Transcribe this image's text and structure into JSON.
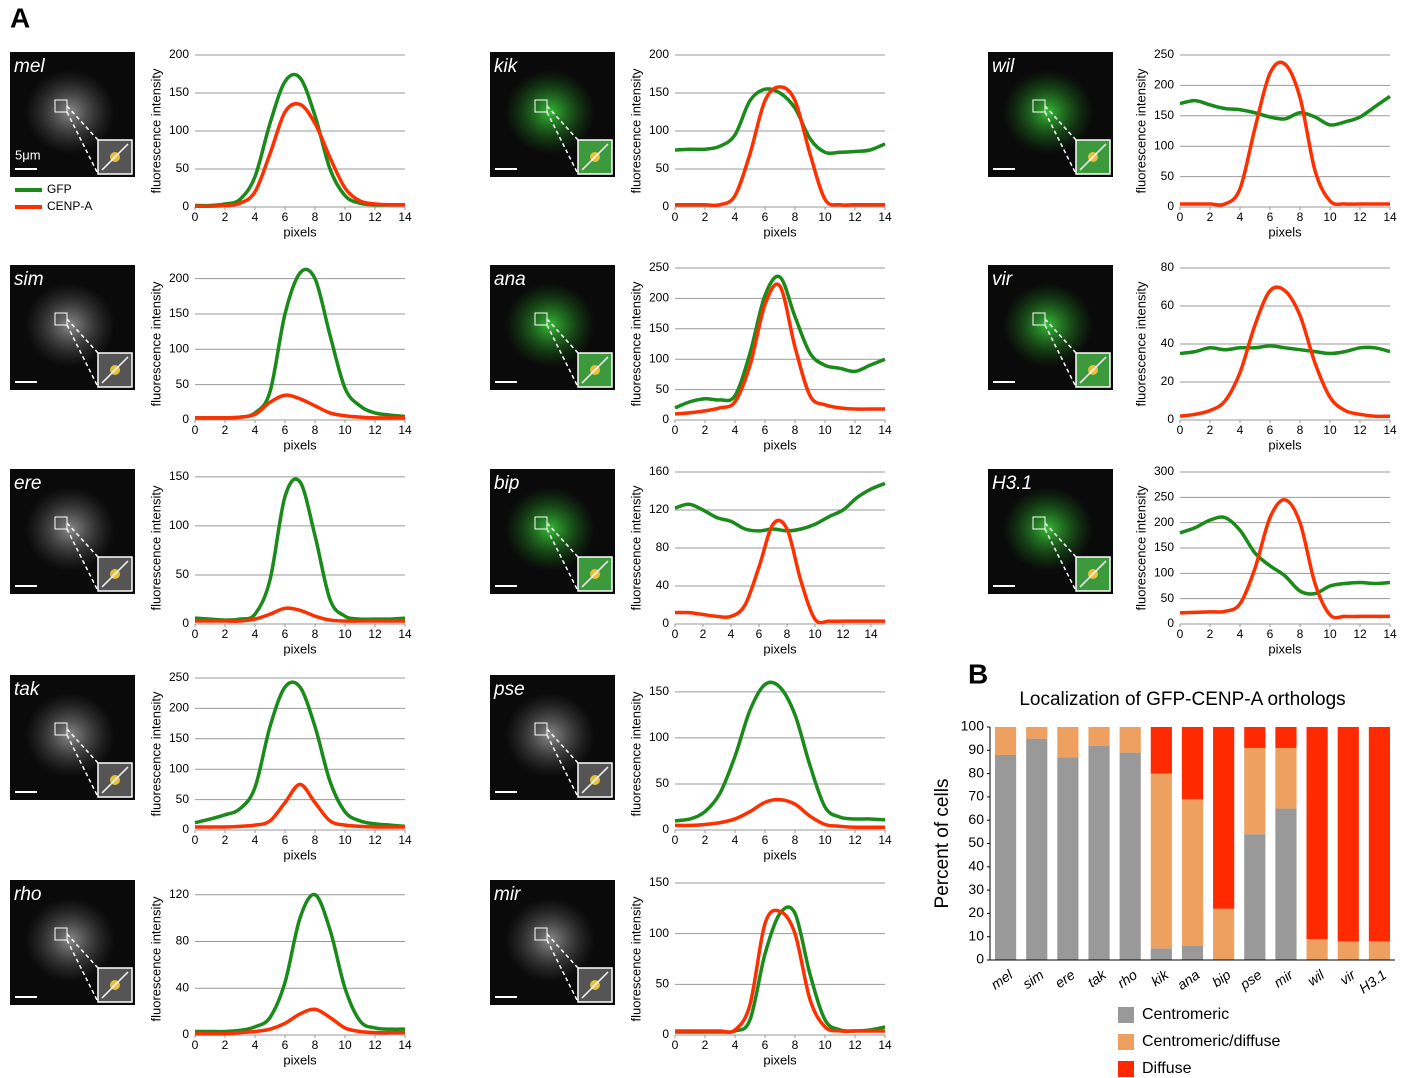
{
  "panel_labels": [
    "A",
    "B"
  ],
  "chart_data": [
    {
      "type": "line",
      "image_label": "mel",
      "scale_bar_label": "5μm",
      "legend": true,
      "y_label": "fluorescence intensity",
      "x_label": "pixels",
      "grid": true,
      "x": [
        0,
        1,
        2,
        3,
        4,
        5,
        6,
        7,
        8,
        9,
        10,
        11,
        12,
        13,
        14
      ],
      "xlim": [
        0,
        14
      ],
      "xticks": [
        0,
        2,
        4,
        6,
        8,
        10,
        12,
        14
      ],
      "ylim": [
        0,
        200
      ],
      "yticks": [
        0,
        50,
        100,
        150,
        200
      ],
      "series": [
        {
          "name": "GFP",
          "color": "#1a8a1a",
          "values": [
            2,
            2,
            4,
            10,
            40,
            110,
            165,
            170,
            120,
            50,
            15,
            5,
            3,
            3,
            3
          ]
        },
        {
          "name": "CENP-A",
          "color": "#ff3000",
          "values": [
            1,
            1,
            2,
            5,
            20,
            70,
            125,
            135,
            110,
            65,
            25,
            8,
            4,
            3,
            3
          ]
        }
      ]
    },
    {
      "type": "line",
      "image_label": "sim",
      "y_label": "fluorescence intensity",
      "x_label": "pixels",
      "grid": true,
      "x": [
        0,
        1,
        2,
        3,
        4,
        5,
        6,
        7,
        8,
        9,
        10,
        11,
        12,
        13,
        14
      ],
      "xlim": [
        0,
        14
      ],
      "xticks": [
        0,
        2,
        4,
        6,
        8,
        10,
        12,
        14
      ],
      "ylim": [
        0,
        215
      ],
      "yticks": [
        0,
        50,
        100,
        150,
        200
      ],
      "series": [
        {
          "name": "GFP",
          "color": "#1a8a1a",
          "values": [
            3,
            3,
            3,
            4,
            10,
            40,
            150,
            208,
            200,
            120,
            45,
            20,
            10,
            7,
            5
          ]
        },
        {
          "name": "CENP-A",
          "color": "#ff3000",
          "values": [
            3,
            3,
            3,
            4,
            8,
            25,
            35,
            30,
            20,
            10,
            6,
            4,
            3,
            3,
            3
          ]
        }
      ]
    },
    {
      "type": "line",
      "image_label": "ere",
      "y_label": "fluorescence intensity",
      "x_label": "pixels",
      "grid": true,
      "x": [
        0,
        1,
        2,
        3,
        4,
        5,
        6,
        7,
        8,
        9,
        10,
        11,
        12,
        13,
        14
      ],
      "xlim": [
        0,
        14
      ],
      "xticks": [
        0,
        2,
        4,
        6,
        8,
        10,
        12,
        14
      ],
      "ylim": [
        0,
        155
      ],
      "yticks": [
        0,
        50,
        100,
        150
      ],
      "series": [
        {
          "name": "GFP",
          "color": "#1a8a1a",
          "values": [
            6,
            5,
            4,
            5,
            10,
            45,
            130,
            145,
            90,
            25,
            8,
            5,
            5,
            5,
            6
          ]
        },
        {
          "name": "CENP-A",
          "color": "#ff3000",
          "values": [
            3,
            3,
            3,
            3,
            5,
            10,
            16,
            14,
            8,
            4,
            3,
            3,
            3,
            3,
            3
          ]
        }
      ]
    },
    {
      "type": "line",
      "image_label": "tak",
      "y_label": "fluorescence intensity",
      "x_label": "pixels",
      "grid": true,
      "x": [
        0,
        1,
        2,
        3,
        4,
        5,
        6,
        7,
        8,
        9,
        10,
        11,
        12,
        13,
        14
      ],
      "xlim": [
        0,
        14
      ],
      "xticks": [
        0,
        2,
        4,
        6,
        8,
        10,
        12,
        14
      ],
      "ylim": [
        0,
        250
      ],
      "yticks": [
        0,
        50,
        100,
        150,
        200,
        250
      ],
      "series": [
        {
          "name": "GFP",
          "color": "#1a8a1a",
          "values": [
            12,
            18,
            25,
            35,
            70,
            170,
            235,
            235,
            170,
            80,
            30,
            15,
            10,
            8,
            6
          ]
        },
        {
          "name": "CENP-A",
          "color": "#ff3000",
          "values": [
            5,
            5,
            5,
            6,
            8,
            15,
            45,
            75,
            45,
            15,
            8,
            6,
            5,
            5,
            5
          ]
        }
      ]
    },
    {
      "type": "line",
      "image_label": "rho",
      "y_label": "fluorescence intensity",
      "x_label": "pixels",
      "grid": true,
      "x": [
        0,
        1,
        2,
        3,
        4,
        5,
        6,
        7,
        8,
        9,
        10,
        11,
        12,
        13,
        14
      ],
      "xlim": [
        0,
        14
      ],
      "xticks": [
        0,
        2,
        4,
        6,
        8,
        10,
        12,
        14
      ],
      "ylim": [
        0,
        130
      ],
      "yticks": [
        0,
        40,
        80,
        120
      ],
      "series": [
        {
          "name": "GFP",
          "color": "#1a8a1a",
          "values": [
            3,
            3,
            3,
            4,
            7,
            15,
            45,
            100,
            120,
            90,
            40,
            12,
            6,
            5,
            5
          ]
        },
        {
          "name": "CENP-A",
          "color": "#ff3000",
          "values": [
            1,
            1,
            1,
            2,
            3,
            5,
            10,
            18,
            22,
            15,
            6,
            3,
            2,
            2,
            2
          ]
        }
      ]
    },
    {
      "type": "line",
      "image_label": "kik",
      "y_label": "fluorescence intensity",
      "x_label": "pixels",
      "grid": true,
      "x": [
        0,
        1,
        2,
        3,
        4,
        5,
        6,
        7,
        8,
        9,
        10,
        11,
        12,
        13,
        14
      ],
      "xlim": [
        0,
        14
      ],
      "xticks": [
        0,
        2,
        4,
        6,
        8,
        10,
        12,
        14
      ],
      "ylim": [
        0,
        200
      ],
      "yticks": [
        0,
        50,
        100,
        150,
        200
      ],
      "series": [
        {
          "name": "GFP",
          "color": "#1a8a1a",
          "values": [
            75,
            76,
            76,
            80,
            95,
            140,
            155,
            150,
            130,
            90,
            72,
            72,
            73,
            75,
            83
          ]
        },
        {
          "name": "CENP-A",
          "color": "#ff3000",
          "values": [
            3,
            3,
            3,
            3,
            15,
            70,
            140,
            158,
            140,
            70,
            10,
            3,
            3,
            3,
            3
          ]
        }
      ]
    },
    {
      "type": "line",
      "image_label": "ana",
      "y_label": "fluorescence intensity",
      "x_label": "pixels",
      "grid": true,
      "x": [
        0,
        1,
        2,
        3,
        4,
        5,
        6,
        7,
        8,
        9,
        10,
        11,
        12,
        13,
        14
      ],
      "xlim": [
        0,
        14
      ],
      "xticks": [
        0,
        2,
        4,
        6,
        8,
        10,
        12,
        14
      ],
      "ylim": [
        0,
        250
      ],
      "yticks": [
        0,
        50,
        100,
        150,
        200,
        250
      ],
      "series": [
        {
          "name": "GFP",
          "color": "#1a8a1a",
          "values": [
            20,
            30,
            35,
            33,
            40,
            110,
            205,
            235,
            170,
            110,
            90,
            85,
            80,
            90,
            100
          ]
        },
        {
          "name": "CENP-A",
          "color": "#ff3000",
          "values": [
            10,
            12,
            15,
            20,
            30,
            90,
            190,
            220,
            120,
            40,
            25,
            20,
            18,
            18,
            18
          ]
        }
      ]
    },
    {
      "type": "line",
      "image_label": "bip",
      "y_label": "fluorescence intensity",
      "x_label": "pixels",
      "grid": true,
      "x": [
        0,
        1,
        2,
        3,
        4,
        5,
        6,
        7,
        8,
        9,
        10,
        11,
        12,
        13,
        14,
        15
      ],
      "xlim": [
        0,
        15
      ],
      "xticks": [
        0,
        2,
        4,
        6,
        8,
        10,
        12,
        14
      ],
      "ylim": [
        0,
        160
      ],
      "yticks": [
        0,
        40,
        80,
        120,
        160
      ],
      "series": [
        {
          "name": "GFP",
          "color": "#1a8a1a",
          "values": [
            122,
            126,
            120,
            112,
            108,
            100,
            98,
            100,
            98,
            100,
            105,
            113,
            120,
            133,
            142,
            148
          ]
        },
        {
          "name": "CENP-A",
          "color": "#ff3000",
          "values": [
            12,
            12,
            10,
            8,
            8,
            20,
            60,
            105,
            100,
            45,
            5,
            3,
            3,
            3,
            3,
            3
          ]
        }
      ]
    },
    {
      "type": "line",
      "image_label": "pse",
      "y_label": "fluorescence intensity",
      "x_label": "pixels",
      "grid": true,
      "x": [
        0,
        1,
        2,
        3,
        4,
        5,
        6,
        7,
        8,
        9,
        10,
        11,
        12,
        13,
        14
      ],
      "xlim": [
        0,
        14
      ],
      "xticks": [
        0,
        2,
        4,
        6,
        8,
        10,
        12,
        14
      ],
      "ylim": [
        0,
        165
      ],
      "yticks": [
        0,
        50,
        100,
        150
      ],
      "series": [
        {
          "name": "GFP",
          "color": "#1a8a1a",
          "values": [
            10,
            12,
            20,
            40,
            80,
            130,
            158,
            155,
            125,
            70,
            25,
            14,
            12,
            12,
            11
          ]
        },
        {
          "name": "CENP-A",
          "color": "#ff3000",
          "values": [
            5,
            5,
            6,
            8,
            12,
            20,
            30,
            33,
            28,
            15,
            6,
            4,
            3,
            3,
            3
          ]
        }
      ]
    },
    {
      "type": "line",
      "image_label": "mir",
      "y_label": "fluorescence intensity",
      "x_label": "pixels",
      "grid": true,
      "x": [
        0,
        1,
        2,
        3,
        4,
        5,
        6,
        7,
        8,
        9,
        10,
        11,
        12,
        13,
        14
      ],
      "xlim": [
        0,
        14
      ],
      "xticks": [
        0,
        2,
        4,
        6,
        8,
        10,
        12,
        14
      ],
      "ylim": [
        0,
        150
      ],
      "yticks": [
        0,
        50,
        100,
        150
      ],
      "series": [
        {
          "name": "GFP",
          "color": "#1a8a1a",
          "values": [
            3,
            3,
            3,
            3,
            4,
            15,
            80,
            120,
            120,
            60,
            15,
            5,
            4,
            5,
            8
          ]
        },
        {
          "name": "CENP-A",
          "color": "#ff3000",
          "values": [
            4,
            4,
            4,
            4,
            5,
            30,
            110,
            122,
            100,
            35,
            8,
            4,
            4,
            4,
            4
          ]
        }
      ]
    },
    {
      "type": "line",
      "image_label": "wil",
      "y_label": "fluorescence intensity",
      "x_label": "pixels",
      "grid": true,
      "x": [
        0,
        1,
        2,
        3,
        4,
        5,
        6,
        7,
        8,
        9,
        10,
        11,
        12,
        13,
        14
      ],
      "xlim": [
        0,
        14
      ],
      "xticks": [
        0,
        2,
        4,
        6,
        8,
        10,
        12,
        14
      ],
      "ylim": [
        0,
        250
      ],
      "yticks": [
        0,
        50,
        100,
        150,
        200,
        250
      ],
      "series": [
        {
          "name": "GFP",
          "color": "#1a8a1a",
          "values": [
            170,
            175,
            168,
            162,
            160,
            155,
            148,
            145,
            155,
            148,
            135,
            140,
            148,
            165,
            182
          ]
        },
        {
          "name": "CENP-A",
          "color": "#ff3000",
          "values": [
            5,
            5,
            5,
            5,
            30,
            130,
            220,
            235,
            180,
            60,
            10,
            5,
            5,
            5,
            5
          ]
        }
      ]
    },
    {
      "type": "line",
      "image_label": "vir",
      "y_label": "fluorescence intensity",
      "x_label": "pixels",
      "grid": true,
      "x": [
        0,
        1,
        2,
        3,
        4,
        5,
        6,
        7,
        8,
        9,
        10,
        11,
        12,
        13,
        14
      ],
      "xlim": [
        0,
        14
      ],
      "xticks": [
        0,
        2,
        4,
        6,
        8,
        10,
        12,
        14
      ],
      "ylim": [
        0,
        80
      ],
      "yticks": [
        0,
        20,
        40,
        60,
        80
      ],
      "series": [
        {
          "name": "GFP",
          "color": "#1a8a1a",
          "values": [
            35,
            36,
            38,
            37,
            38,
            38,
            39,
            38,
            37,
            36,
            35,
            36,
            38,
            38,
            36
          ]
        },
        {
          "name": "CENP-A",
          "color": "#ff3000",
          "values": [
            2,
            3,
            5,
            10,
            25,
            50,
            68,
            68,
            55,
            30,
            12,
            5,
            3,
            2,
            2
          ]
        }
      ]
    },
    {
      "type": "line",
      "image_label": "H3.1",
      "y_label": "fluorescence intensity",
      "x_label": "pixels",
      "grid": true,
      "x": [
        0,
        1,
        2,
        3,
        4,
        5,
        6,
        7,
        8,
        9,
        10,
        11,
        12,
        13,
        14
      ],
      "xlim": [
        0,
        14
      ],
      "xticks": [
        0,
        2,
        4,
        6,
        8,
        10,
        12,
        14
      ],
      "ylim": [
        0,
        300
      ],
      "yticks": [
        0,
        50,
        100,
        150,
        200,
        250,
        300
      ],
      "series": [
        {
          "name": "GFP",
          "color": "#1a8a1a",
          "values": [
            180,
            190,
            205,
            210,
            185,
            140,
            115,
            95,
            65,
            60,
            75,
            80,
            82,
            80,
            82
          ]
        },
        {
          "name": "CENP-A",
          "color": "#ff3000",
          "values": [
            22,
            23,
            24,
            25,
            40,
            110,
            210,
            245,
            200,
            80,
            18,
            15,
            15,
            15,
            15
          ]
        }
      ]
    },
    {
      "type": "stacked_bar",
      "title": "Localization of GFP-CENP-A orthologs",
      "y_label": "Percent of cells",
      "categories": [
        "mel",
        "sim",
        "ere",
        "tak",
        "rho",
        "kik",
        "ana",
        "bip",
        "pse",
        "mir",
        "wil",
        "vir",
        "H3.1"
      ],
      "ylim": [
        0,
        100
      ],
      "yticks": [
        0,
        10,
        20,
        30,
        40,
        50,
        60,
        70,
        80,
        90,
        100
      ],
      "series": [
        {
          "name": "Centromeric",
          "color": "#999999",
          "values": [
            88,
            95,
            87,
            92,
            89,
            5,
            6,
            0,
            54,
            65,
            0,
            0,
            0
          ]
        },
        {
          "name": "Centromeric/diffuse",
          "color": "#eda060",
          "values": [
            12,
            5,
            13,
            8,
            11,
            75,
            63,
            22,
            37,
            26,
            9,
            8,
            8
          ]
        },
        {
          "name": "Diffuse",
          "color": "#ff2a00",
          "values": [
            0,
            0,
            0,
            0,
            0,
            20,
            31,
            78,
            9,
            9,
            91,
            92,
            92
          ]
        }
      ]
    }
  ]
}
